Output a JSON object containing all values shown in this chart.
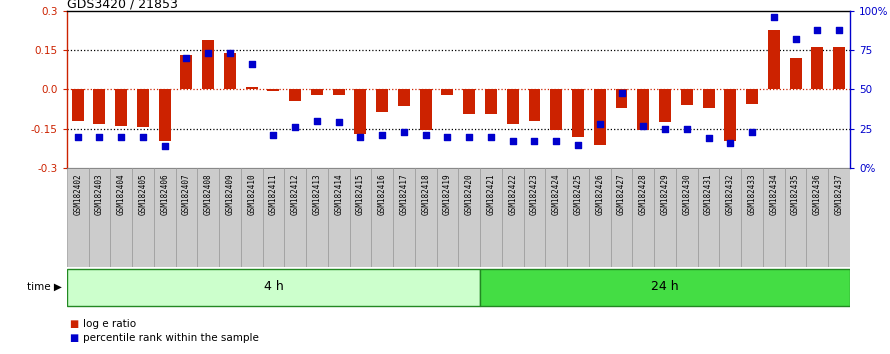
{
  "title": "GDS3420 / 21853",
  "samples": [
    "GSM182402",
    "GSM182403",
    "GSM182404",
    "GSM182405",
    "GSM182406",
    "GSM182407",
    "GSM182408",
    "GSM182409",
    "GSM182410",
    "GSM182411",
    "GSM182412",
    "GSM182413",
    "GSM182414",
    "GSM182415",
    "GSM182416",
    "GSM182417",
    "GSM182418",
    "GSM182419",
    "GSM182420",
    "GSM182421",
    "GSM182422",
    "GSM182423",
    "GSM182424",
    "GSM182425",
    "GSM182426",
    "GSM182427",
    "GSM182428",
    "GSM182429",
    "GSM182430",
    "GSM182431",
    "GSM182432",
    "GSM182433",
    "GSM182434",
    "GSM182435",
    "GSM182436",
    "GSM182437"
  ],
  "log_ratio": [
    -0.12,
    -0.13,
    -0.14,
    -0.145,
    -0.195,
    0.13,
    0.19,
    0.14,
    0.01,
    -0.005,
    -0.045,
    -0.02,
    -0.02,
    -0.17,
    -0.085,
    -0.065,
    -0.155,
    -0.02,
    -0.095,
    -0.095,
    -0.13,
    -0.12,
    -0.155,
    -0.18,
    -0.21,
    -0.07,
    -0.155,
    -0.125,
    -0.06,
    -0.07,
    -0.195,
    -0.055,
    0.225,
    0.12,
    0.16,
    0.16
  ],
  "percentile": [
    20,
    20,
    20,
    20,
    14,
    70,
    73,
    73,
    66,
    21,
    26,
    30,
    29,
    20,
    21,
    23,
    21,
    20,
    20,
    20,
    17,
    17,
    17,
    15,
    28,
    48,
    27,
    25,
    25,
    19,
    16,
    23,
    96,
    82,
    88,
    88
  ],
  "group1_count": 19,
  "group1_label": "4 h",
  "group2_label": "24 h",
  "bar_color": "#cc2200",
  "dot_color": "#0000cc",
  "ylim_left": [
    -0.3,
    0.3
  ],
  "yticks_left": [
    -0.3,
    -0.15,
    0.0,
    0.15,
    0.3
  ],
  "yticks_right": [
    0,
    25,
    50,
    75,
    100
  ],
  "ytick_labels_right": [
    "0%",
    "25",
    "50",
    "75",
    "100%"
  ],
  "legend_red": "log e ratio",
  "legend_blue": "percentile rank within the sample",
  "group1_bg": "#ccffcc",
  "group2_bg": "#44dd44",
  "time_border": "#228822",
  "label_box_color": "#cccccc",
  "label_box_border": "#999999"
}
